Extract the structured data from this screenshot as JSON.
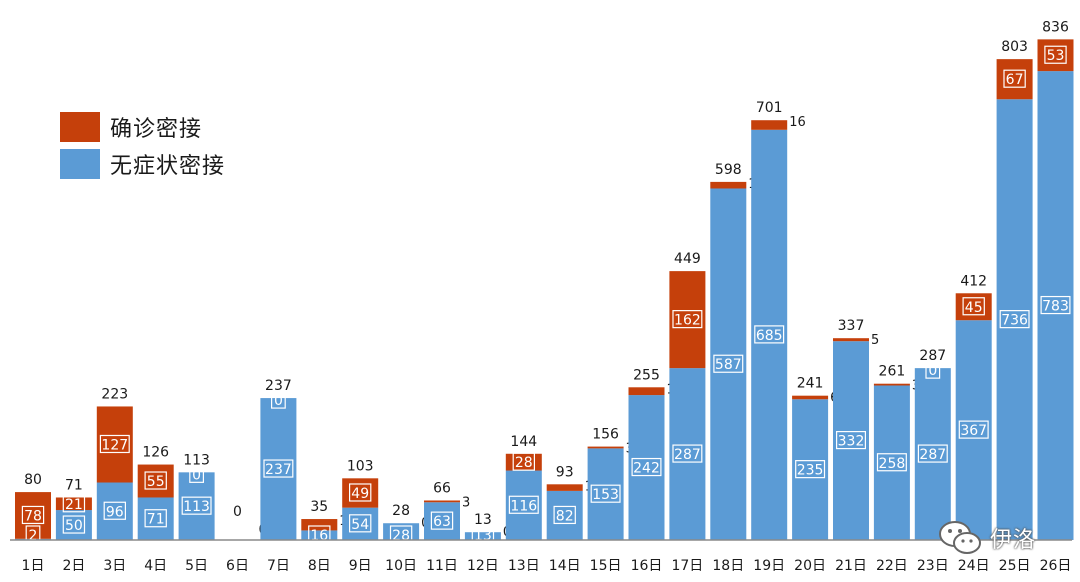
{
  "chart_data": {
    "type": "bar",
    "stacked": true,
    "categories": [
      "1日",
      "2日",
      "3日",
      "4日",
      "5日",
      "6日",
      "7日",
      "8日",
      "9日",
      "10日",
      "11日",
      "12日",
      "13日",
      "14日",
      "15日",
      "16日",
      "17日",
      "18日",
      "19日",
      "20日",
      "21日",
      "22日",
      "23日",
      "24日",
      "25日",
      "26日"
    ],
    "totals": [
      80,
      71,
      223,
      126,
      113,
      0,
      237,
      35,
      103,
      28,
      66,
      13,
      144,
      93,
      156,
      255,
      449,
      598,
      701,
      241,
      337,
      261,
      287,
      412,
      803,
      836
    ],
    "series": [
      {
        "name": "无症状密接",
        "color": "#5b9bd5",
        "values": [
          2,
          50,
          96,
          71,
          113,
          0,
          237,
          16,
          54,
          28,
          63,
          13,
          116,
          82,
          153,
          242,
          287,
          587,
          685,
          235,
          332,
          258,
          287,
          367,
          736,
          783
        ]
      },
      {
        "name": "确诊密接",
        "color": "#c5400b",
        "values": [
          78,
          21,
          127,
          55,
          0,
          0,
          0,
          19,
          49,
          0,
          3,
          0,
          28,
          11,
          3,
          13,
          162,
          11,
          16,
          6,
          5,
          3,
          0,
          45,
          67,
          53
        ]
      }
    ],
    "ylim": [
      0,
      860
    ],
    "grid": false,
    "legend_position": "top-left"
  },
  "legend": {
    "items": [
      {
        "label": "确诊密接",
        "color": "#c5400b"
      },
      {
        "label": "无症状密接",
        "color": "#5b9bd5"
      }
    ]
  },
  "watermark": {
    "text": "伊洛",
    "icon": "wechat-icon"
  }
}
